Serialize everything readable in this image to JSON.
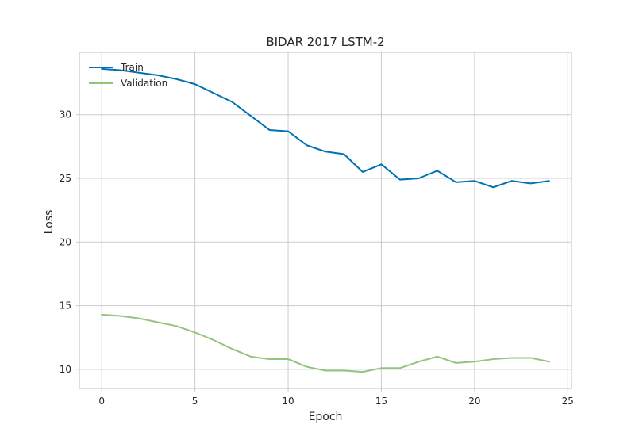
{
  "chart_data": {
    "type": "line",
    "title": "BIDAR 2017 LSTM-2",
    "xlabel": "Epoch",
    "ylabel": "Loss",
    "xlim": [
      -1.2,
      25.2
    ],
    "ylim": [
      8.5,
      34.9
    ],
    "xticks": [
      0,
      5,
      10,
      15,
      20,
      25
    ],
    "yticks": [
      10,
      15,
      20,
      25,
      30
    ],
    "grid": true,
    "legend_position": "top-left",
    "x": [
      0,
      1,
      2,
      3,
      4,
      5,
      6,
      7,
      8,
      9,
      10,
      11,
      12,
      13,
      14,
      15,
      16,
      17,
      18,
      19,
      20,
      21,
      22,
      23,
      24
    ],
    "series": [
      {
        "name": "Train",
        "color": "#0072b2",
        "values": [
          33.6,
          33.5,
          33.3,
          33.1,
          32.8,
          32.4,
          31.7,
          31.0,
          29.9,
          28.8,
          28.7,
          27.6,
          27.1,
          26.9,
          25.5,
          26.1,
          24.9,
          25.0,
          25.6,
          24.7,
          24.8,
          24.3,
          24.8,
          24.6,
          24.8
        ]
      },
      {
        "name": "Validation",
        "color": "#93c47d",
        "values": [
          14.3,
          14.2,
          14.0,
          13.7,
          13.4,
          12.9,
          12.3,
          11.6,
          11.0,
          10.8,
          10.8,
          10.2,
          9.9,
          9.9,
          9.8,
          10.1,
          10.1,
          10.6,
          11.0,
          10.5,
          10.6,
          10.8,
          10.9,
          10.9,
          10.6
        ]
      }
    ]
  }
}
